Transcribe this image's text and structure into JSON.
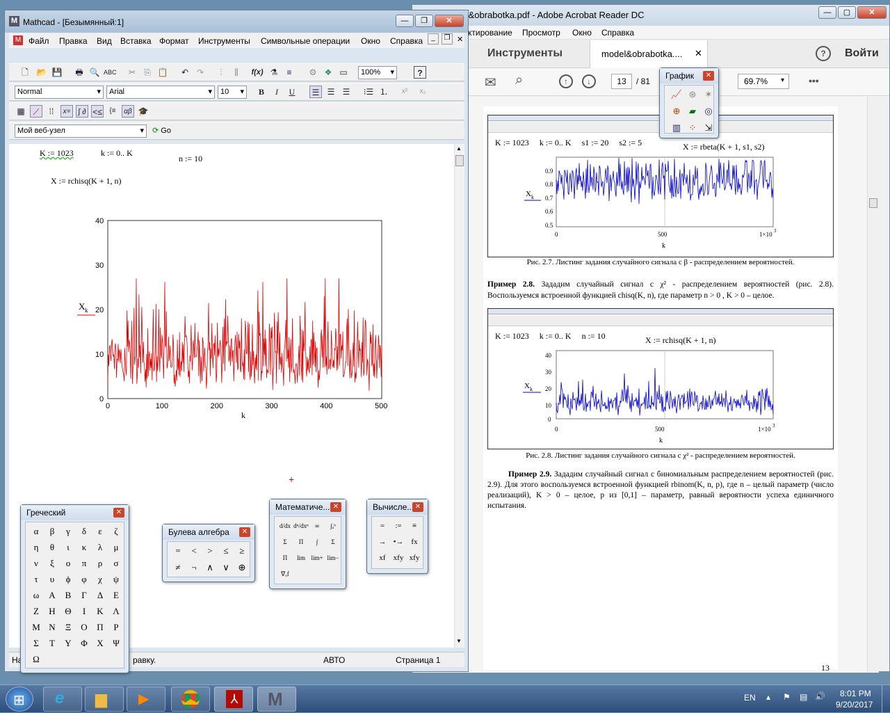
{
  "acrobat": {
    "title": "odel&obrabotka.pdf - Adobe Acrobat Reader DC",
    "menu": [
      "ктирование",
      "Просмотр",
      "Окно",
      "Справка"
    ],
    "tab_tools": "Инструменты",
    "tab_doc": "model&obrabotka....",
    "help": "?",
    "signin": "Войти",
    "page_num": "13",
    "page_total": "/ 81",
    "zoom": "69.7%",
    "more": "•••",
    "page": {
      "fig1": {
        "line1": [
          "K := 1023",
          "k := 0.. K",
          "s1 := 20",
          "s2 := 5"
        ],
        "formula": "X := rbeta(K + 1, s1, s2)",
        "ylabel": "X",
        "ysub": "k",
        "xlabel": "k",
        "yticks": [
          "0.9",
          "0.8",
          "0.7",
          "0.6",
          "0.5"
        ],
        "xticks": [
          "0",
          "500",
          "1×10"
        ],
        "xsup": "3",
        "caption": "Рис. 2.7. Листинг задания случайного сигнала с  β - распределением вероятностей."
      },
      "example28": "Пример 2.8.",
      "example28_text": "Зададим случайный сигнал с  χ² - распределением вероятностей (рис. 2.8). Воспользуемся встроенной функцией chisq(K, n), где параметр  n > 0 ,  K > 0 – целое.",
      "fig2": {
        "line1": [
          "K := 1023",
          "k := 0.. K",
          "n := 10"
        ],
        "formula": "X := rchisq(K + 1, n)",
        "ylabel": "X",
        "ysub": "k",
        "xlabel": "k",
        "yticks": [
          "40",
          "30",
          "20",
          "10",
          "0"
        ],
        "xticks": [
          "0",
          "500",
          "1×10"
        ],
        "xsup": "3",
        "caption": "Рис. 2.8. Листинг задания случайного сигнала с χ² - распределением вероятностей."
      },
      "example29": "Пример 2.9.",
      "example29_text": "Зададим случайный сигнал с биномиальным распределением вероятностей (рис. 2.9). Для этого воспользуемся встроенной функцией rbinom(K, n, p), где n – целый параметр (число реализаций),  K > 0 – целое, p из [0,1] – параметр, равный вероятности успеха единичного испытания.",
      "page_footer": "13"
    }
  },
  "mathcad": {
    "title": "Mathcad - [Безымянный:1]",
    "menu": [
      "Файл",
      "Правка",
      "Вид",
      "Вставка",
      "Формат",
      "Инструменты",
      "Символьные операции",
      "Окно",
      "Справка"
    ],
    "zoom": "100%",
    "style": "Normal",
    "font": "Arial",
    "size": "10",
    "web": "Мой веб-узел",
    "go": "Go",
    "status_left": "На",
    "status_mid": "равку.",
    "status_mode": "АВТО",
    "status_page": "Страница 1",
    "worksheet": {
      "def_K": "K := 1023",
      "def_k": "k := 0.. K",
      "def_n": "n := 10",
      "def_X": "X := rchisq(K + 1, n)"
    }
  },
  "chart_data": {
    "type": "line",
    "xlabel": "k",
    "ylabel": "X_k",
    "xlim": [
      0,
      500
    ],
    "ylim": [
      0,
      40
    ],
    "xticks": [
      0,
      100,
      200,
      300,
      400,
      500
    ],
    "yticks": [
      0,
      10,
      20,
      30,
      40
    ],
    "series": [
      {
        "color": "#e00000",
        "distribution": "rchisq(K+1,n), n=10",
        "mean": 10,
        "min": 1.5,
        "max": 27
      }
    ],
    "grid": false
  },
  "palettes": {
    "graph": {
      "title": "График"
    },
    "greek": {
      "title": "Греческий",
      "symbols": [
        "α",
        "β",
        "γ",
        "δ",
        "ε",
        "ζ",
        "η",
        "θ",
        "ι",
        "κ",
        "λ",
        "μ",
        "ν",
        "ξ",
        "ο",
        "π",
        "ρ",
        "σ",
        "τ",
        "υ",
        "ϕ",
        "φ",
        "χ",
        "ψ",
        "ω",
        "Α",
        "Β",
        "Γ",
        "Δ",
        "Ε",
        "Ζ",
        "Η",
        "Θ",
        "Ι",
        "Κ",
        "Λ",
        "Μ",
        "Ν",
        "Ξ",
        "Ο",
        "Π",
        "Ρ",
        "Σ",
        "Τ",
        "Υ",
        "Φ",
        "Χ",
        "Ψ",
        "Ω"
      ]
    },
    "bool": {
      "title": "Булева алгебра",
      "symbols": [
        "=",
        "<",
        ">",
        "≤",
        "≥",
        "≠",
        "¬",
        "∧",
        "∨",
        "⊕"
      ]
    },
    "math": {
      "title": "Математиче...",
      "symbols": [
        "d/dx",
        "dⁿ/dxⁿ",
        "∞",
        "∫ₐᵇ",
        "Σ",
        "Π",
        "∫",
        "Σ",
        "Π",
        "lim",
        "lim+",
        "lim−",
        "∇ₓf"
      ]
    },
    "eval": {
      "title": "Вычисле...",
      "symbols": [
        "=",
        ":=",
        "≡",
        "→",
        "•→",
        "fx",
        "xf",
        "xfy",
        "xfy"
      ]
    }
  },
  "taskbar": {
    "lang": "EN",
    "time": "8:01 PM",
    "date": "9/20/2017"
  },
  "colors": {
    "mathcad_trace": "#e00000",
    "pdf_trace": "#0000d0",
    "acrobat_signin": "#333333"
  }
}
